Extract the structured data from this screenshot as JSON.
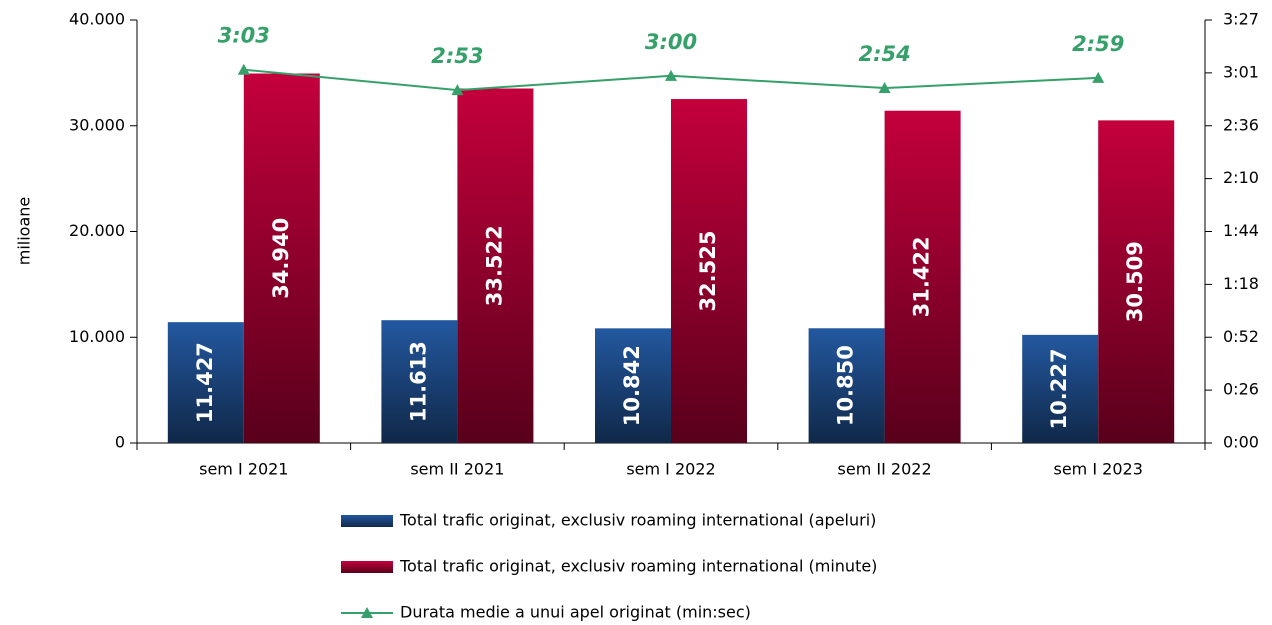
{
  "chart_data": {
    "type": "bar-line",
    "y_label": "milioane",
    "categories": [
      "sem I 2021",
      "sem II 2021",
      "sem I 2022",
      "sem II 2022",
      "sem I 2023"
    ],
    "series": [
      {
        "name": "Total trafic originat, exclusiv roaming international (apeluri)",
        "color": "#2358a0",
        "type": "bar",
        "values": [
          11427,
          11613,
          10842,
          10850,
          10227
        ],
        "value_labels": [
          "11.427",
          "11.613",
          "10.842",
          "10.850",
          "10.227"
        ]
      },
      {
        "name": "Total trafic originat, exclusiv roaming international (minute)",
        "color": "#c4003c",
        "type": "bar",
        "values": [
          34940,
          33522,
          32525,
          31422,
          30509
        ],
        "value_labels": [
          "34.940",
          "33.522",
          "32.525",
          "31.422",
          "30.509"
        ]
      },
      {
        "name": "Durata medie a unui apel originat (min:sec)",
        "color": "#36a06a",
        "type": "line",
        "axis": "y2",
        "values": [
          183,
          173,
          180,
          174,
          179
        ],
        "value_labels": [
          "3:03",
          "2:53",
          "3:00",
          "2:54",
          "2:59"
        ]
      }
    ],
    "ylim": [
      0,
      40000
    ],
    "yticks": [
      0,
      {
        "value": 10000,
        "label": "10.000"
      },
      {
        "value": 20000,
        "label": "20.000"
      },
      {
        "value": 30000,
        "label": "30.000"
      },
      {
        "value": 40000,
        "label": "40.000"
      }
    ],
    "y2lim": [
      0,
      207.36
    ],
    "y2ticks": [
      {
        "value": 0,
        "label": "0:00"
      },
      {
        "value": 25.92,
        "label": "0:26"
      },
      {
        "value": 51.84,
        "label": "0:52"
      },
      {
        "value": 77.76,
        "label": "1:18"
      },
      {
        "value": 103.68,
        "label": "1:44"
      },
      {
        "value": 129.6,
        "label": "2:10"
      },
      {
        "value": 155.52,
        "label": "2:36"
      },
      {
        "value": 181.44,
        "label": "3:01"
      },
      {
        "value": 207.36,
        "label": "3:27"
      }
    ],
    "legend": "bottom"
  }
}
